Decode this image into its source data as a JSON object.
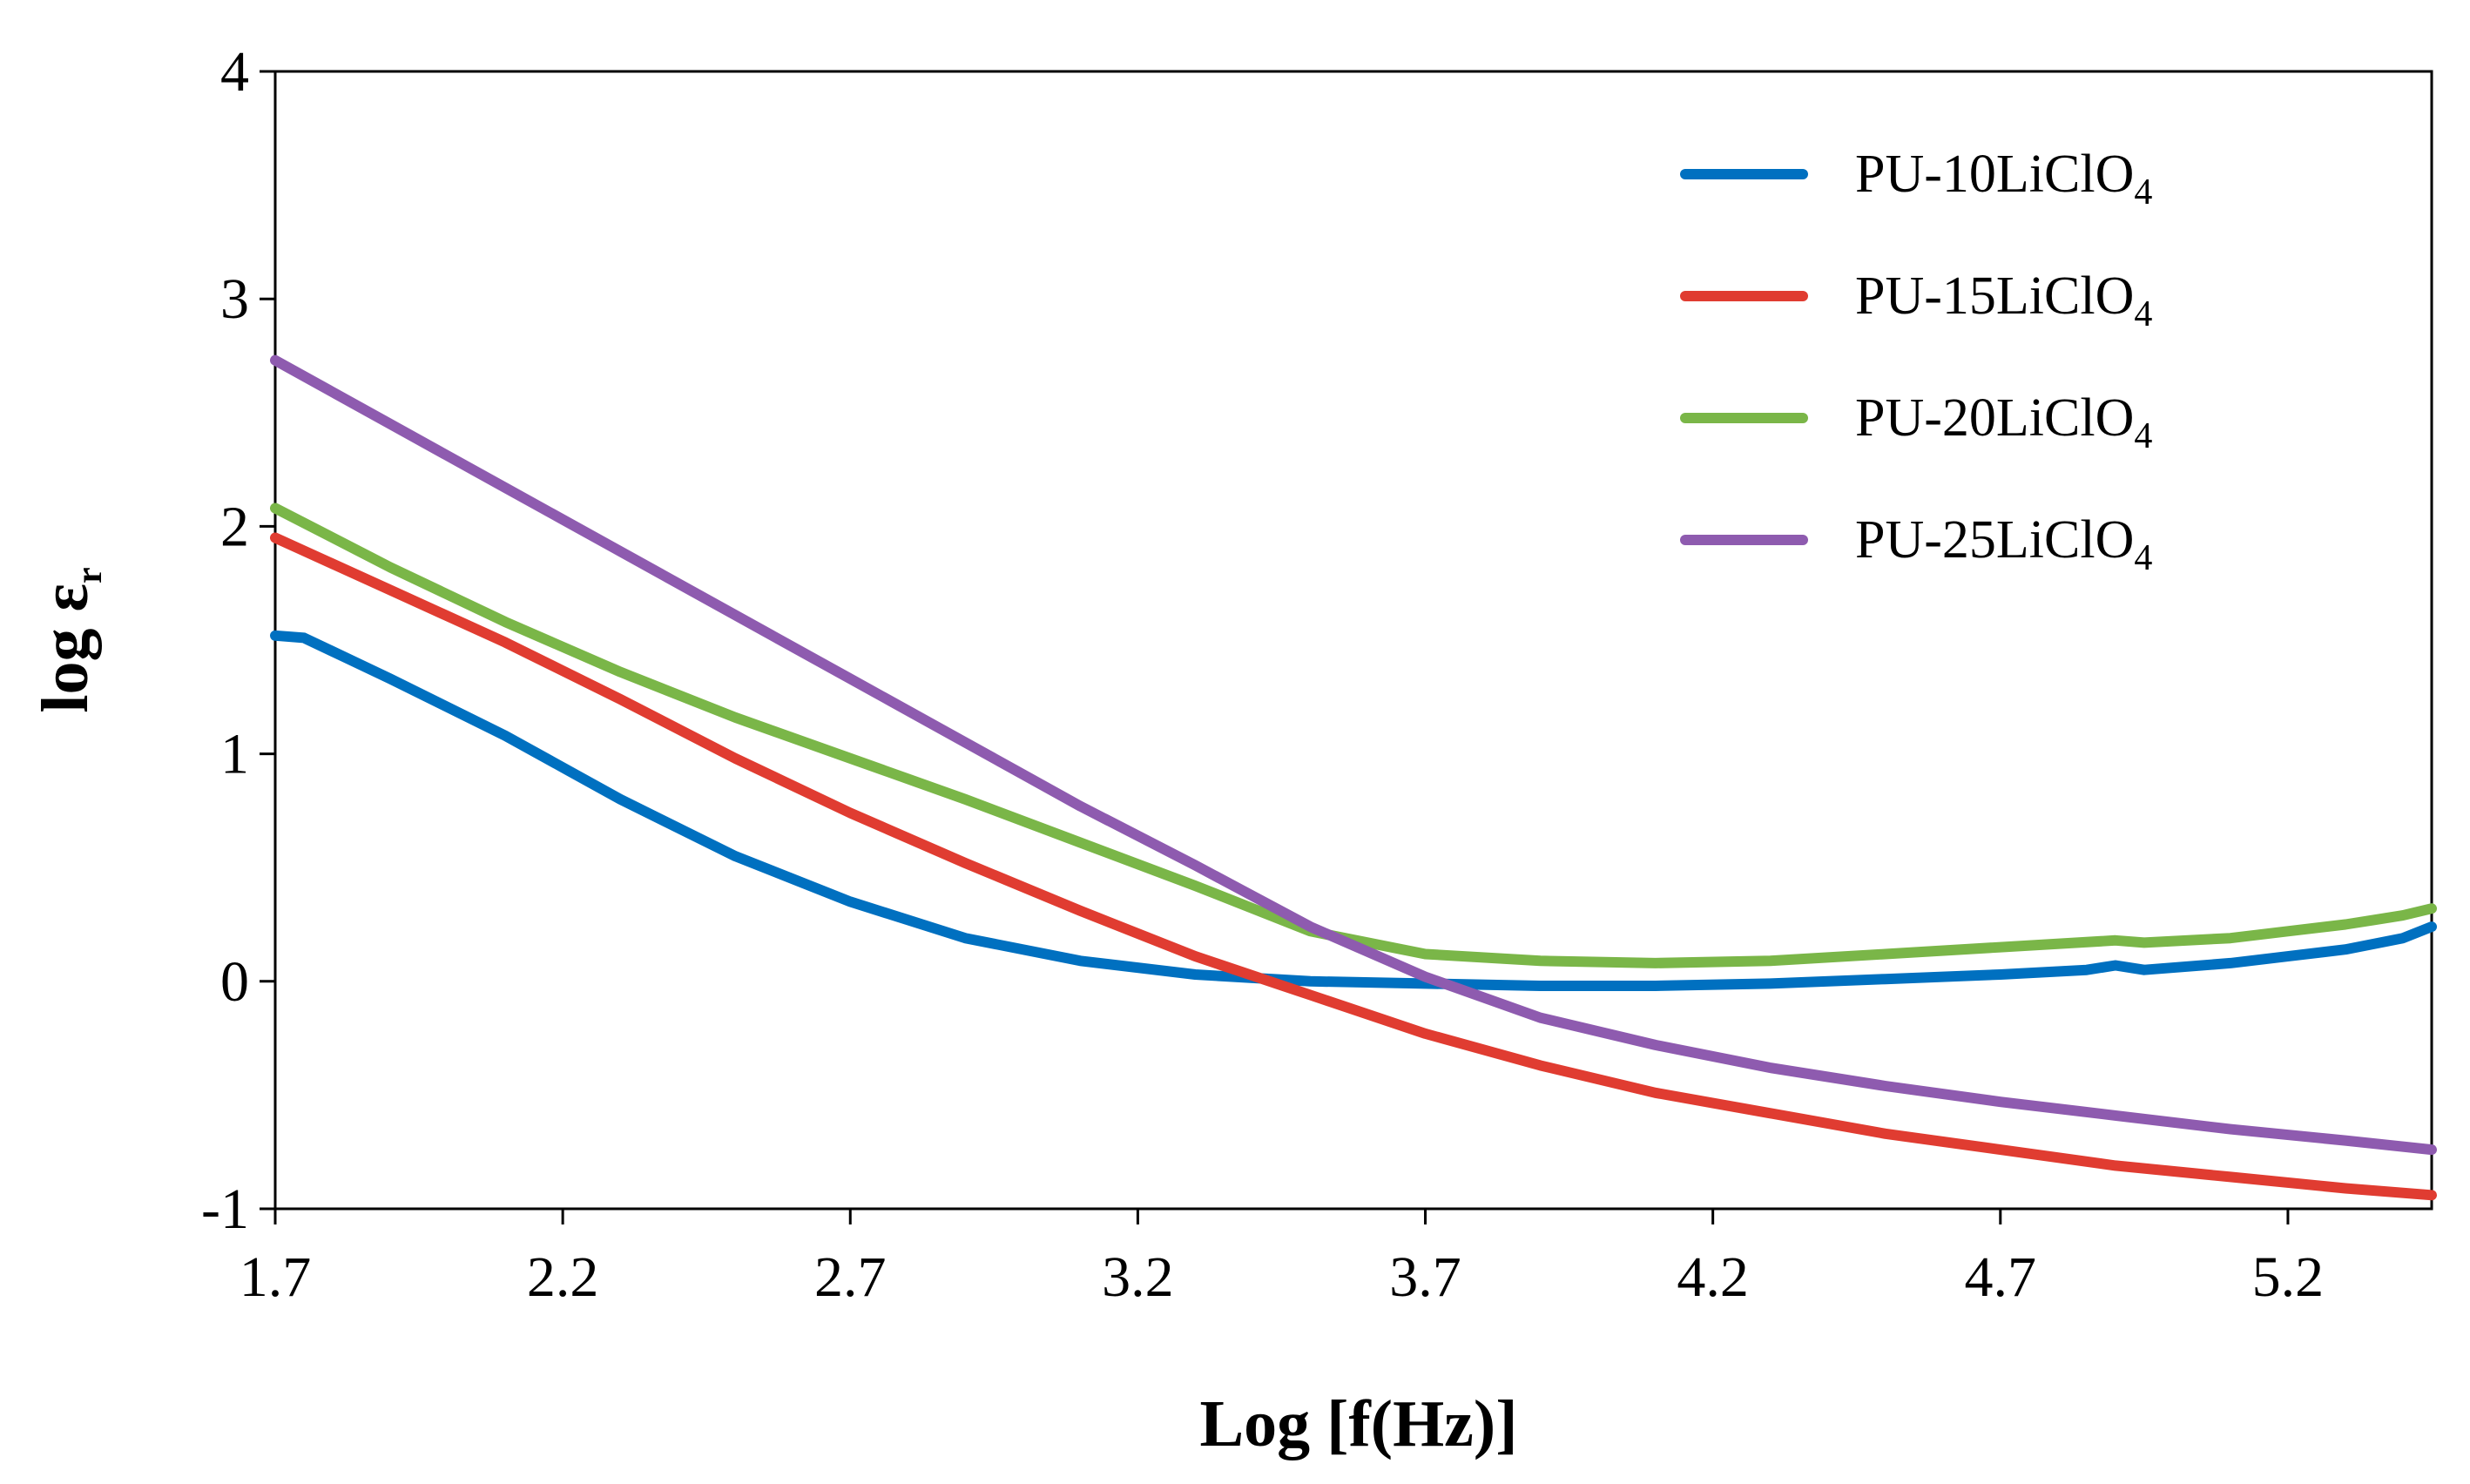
{
  "chart_data": {
    "type": "line",
    "title": "",
    "xlabel": "Log [f(Hz)]",
    "ylabel_main": "log ε",
    "ylabel_sub": "r",
    "xlim": [
      1.7,
      5.45
    ],
    "ylim": [
      -1,
      4
    ],
    "xticks": [
      1.7,
      2.2,
      2.7,
      3.2,
      3.7,
      4.2,
      4.7,
      5.2
    ],
    "xtick_labels": [
      "1.7",
      "2.2",
      "2.7",
      "3.2",
      "3.7",
      "4.2",
      "4.7",
      "5.2"
    ],
    "yticks": [
      -1,
      0,
      1,
      2,
      3,
      4
    ],
    "ytick_labels": [
      "-1",
      "0",
      "1",
      "2",
      "3",
      "4"
    ],
    "grid": false,
    "legend_position": "top-right",
    "series": [
      {
        "name": "PU-10LiClO",
        "subscript": "4",
        "color": "#0070C0",
        "x": [
          1.7,
          1.75,
          1.9,
          2.1,
          2.3,
          2.5,
          2.7,
          2.9,
          3.1,
          3.3,
          3.5,
          3.7,
          3.9,
          4.1,
          4.3,
          4.5,
          4.7,
          4.85,
          4.9,
          4.95,
          5.1,
          5.2,
          5.3,
          5.4,
          5.45
        ],
        "values": [
          1.52,
          1.51,
          1.33,
          1.08,
          0.8,
          0.55,
          0.35,
          0.19,
          0.09,
          0.03,
          0.0,
          -0.01,
          -0.02,
          -0.02,
          -0.01,
          0.01,
          0.03,
          0.05,
          0.07,
          0.05,
          0.08,
          0.11,
          0.14,
          0.19,
          0.24
        ]
      },
      {
        "name": "PU-15LiClO",
        "subscript": "4",
        "color": "#E03C31",
        "x": [
          1.7,
          1.9,
          2.1,
          2.3,
          2.5,
          2.7,
          2.9,
          3.1,
          3.3,
          3.5,
          3.7,
          3.9,
          4.1,
          4.3,
          4.5,
          4.7,
          4.9,
          5.1,
          5.3,
          5.45
        ],
        "values": [
          1.95,
          1.72,
          1.49,
          1.24,
          0.98,
          0.74,
          0.52,
          0.31,
          0.11,
          -0.06,
          -0.23,
          -0.37,
          -0.49,
          -0.58,
          -0.67,
          -0.74,
          -0.81,
          -0.86,
          -0.91,
          -0.94
        ]
      },
      {
        "name": "PU-20LiClO",
        "subscript": "4",
        "color": "#7AB648",
        "x": [
          1.7,
          1.9,
          2.1,
          2.3,
          2.5,
          2.7,
          2.9,
          3.1,
          3.3,
          3.5,
          3.7,
          3.9,
          4.1,
          4.3,
          4.5,
          4.7,
          4.9,
          4.95,
          5.1,
          5.2,
          5.3,
          5.35,
          5.4,
          5.45
        ],
        "values": [
          2.08,
          1.82,
          1.58,
          1.36,
          1.16,
          0.98,
          0.8,
          0.61,
          0.42,
          0.22,
          0.12,
          0.09,
          0.08,
          0.09,
          0.12,
          0.15,
          0.18,
          0.17,
          0.19,
          0.22,
          0.25,
          0.27,
          0.29,
          0.32
        ]
      },
      {
        "name": "PU-25LiClO",
        "subscript": "4",
        "color": "#8E5BAF",
        "x": [
          1.7,
          1.9,
          2.1,
          2.3,
          2.5,
          2.7,
          2.9,
          3.1,
          3.3,
          3.5,
          3.7,
          3.9,
          4.1,
          4.3,
          4.5,
          4.7,
          4.9,
          5.1,
          5.3,
          5.45
        ],
        "values": [
          2.73,
          2.45,
          2.17,
          1.89,
          1.61,
          1.33,
          1.05,
          0.77,
          0.51,
          0.24,
          0.02,
          -0.16,
          -0.28,
          -0.38,
          -0.46,
          -0.53,
          -0.59,
          -0.65,
          -0.7,
          -0.74
        ]
      }
    ]
  }
}
